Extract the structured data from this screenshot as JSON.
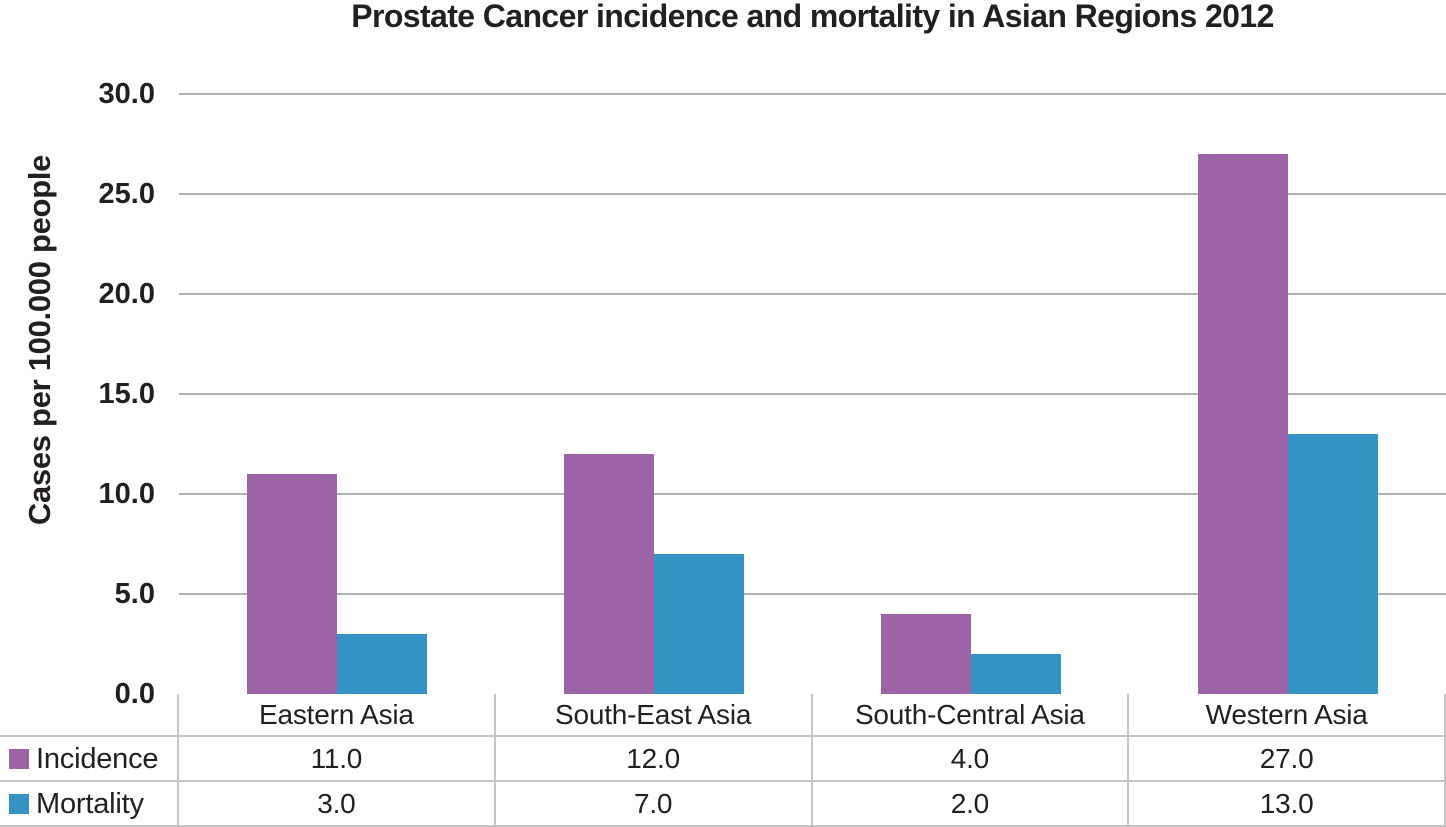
{
  "chart_data": {
    "type": "bar",
    "title": "Prostate Cancer incidence and mortality in Asian Regions 2012",
    "xlabel": "",
    "ylabel": "Cases per 100.000 people",
    "categories": [
      "Eastern Asia",
      "South-East Asia",
      "South-Central Asia",
      "Western Asia"
    ],
    "series": [
      {
        "name": "Incidence",
        "color": "#9c64a6",
        "values": [
          11.0,
          12.0,
          4.0,
          27.0
        ]
      },
      {
        "name": "Mortality",
        "color": "#3492c4",
        "values": [
          3.0,
          7.0,
          2.0,
          13.0
        ]
      }
    ],
    "ylim": [
      0,
      30
    ],
    "yticks": [
      "0.0",
      "5.0",
      "10.0",
      "15.0",
      "20.0",
      "25.0",
      "30.0"
    ],
    "grid": true,
    "legend_position": "table-left",
    "colors": {
      "gridline": "#b1b2b4",
      "table_border": "#c3c4c6",
      "text": "#231f20",
      "background": "#ffffff"
    }
  }
}
